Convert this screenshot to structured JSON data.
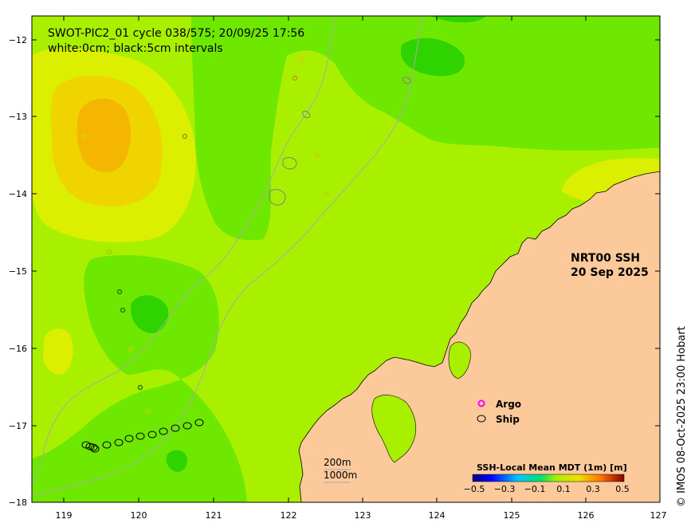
{
  "title": {
    "line1": "SWOT-PIC2_01 cycle 038/575; 20/09/25 17:56",
    "line2": "white:0cm; black:5cm intervals"
  },
  "product_label": {
    "line1": "NRT00 SSH",
    "line2": "20 Sep 2025"
  },
  "legend": {
    "argo": "Argo",
    "ship": "Ship"
  },
  "scale": {
    "label1": "200m",
    "label2": "1000m"
  },
  "colorbar": {
    "title": "SSH-Local Mean MDT (1m) [m]",
    "ticks": [
      "−0.5",
      "−0.3",
      "−0.1",
      "0.1",
      "0.3",
      "0.5"
    ]
  },
  "axes": {
    "lon_ticks": [
      "119",
      "120",
      "121",
      "122",
      "123",
      "124",
      "125",
      "126",
      "127"
    ],
    "lat_ticks": [
      "−12",
      "−13",
      "−14",
      "−15",
      "−16",
      "−17",
      "−18"
    ]
  },
  "credit": "© IMOS 08-Oct-2025 23:00 Hobart",
  "colors": {
    "land": "#fcc99b",
    "sea_base": "#a8f000",
    "green": "#6ee800",
    "dark_green": "#2fd400",
    "yellow": "#dcef00",
    "orange": "#f5b600",
    "gold": "#f0d400",
    "argo_marker": "#ff00ff",
    "ship_marker": "#000000"
  }
}
